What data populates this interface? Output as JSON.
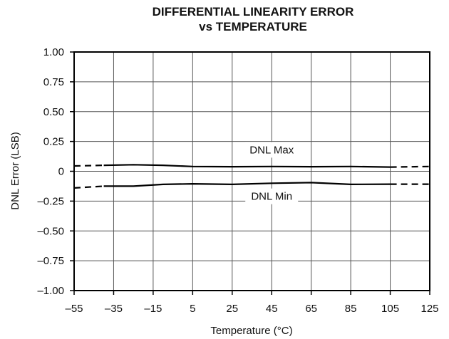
{
  "chart_data": {
    "type": "line",
    "title": "DIFFERENTIAL LINEARITY ERROR",
    "subtitle": "vs TEMPERATURE",
    "xlabel": "Temperature (°C)",
    "ylabel": "DNL Error (LSB)",
    "xlim": [
      -55,
      125
    ],
    "ylim": [
      -1.0,
      1.0
    ],
    "x_ticks": [
      -55,
      -35,
      -15,
      5,
      25,
      45,
      65,
      85,
      105,
      125
    ],
    "x_tick_labels": [
      "–55",
      "–35",
      "–15",
      "5",
      "25",
      "45",
      "65",
      "85",
      "105",
      "125"
    ],
    "y_ticks": [
      1.0,
      0.75,
      0.5,
      0.25,
      0,
      -0.25,
      -0.5,
      -0.75,
      -1.0
    ],
    "y_tick_labels": [
      "1.00",
      "0.75",
      "0.50",
      "0.25",
      "0",
      "–0.25",
      "–0.50",
      "–0.75",
      "–1.00"
    ],
    "grid": true,
    "series": [
      {
        "name": "DNL Max",
        "solid": {
          "x": [
            -40,
            -25,
            -10,
            5,
            25,
            45,
            65,
            85,
            105
          ],
          "y": [
            0.05,
            0.055,
            0.05,
            0.04,
            0.038,
            0.04,
            0.038,
            0.04,
            0.035
          ]
        },
        "dashed_left": {
          "x": [
            -55,
            -40
          ],
          "y": [
            0.045,
            0.05
          ]
        },
        "dashed_right": {
          "x": [
            105,
            125
          ],
          "y": [
            0.035,
            0.04
          ]
        }
      },
      {
        "name": "DNL Min",
        "solid": {
          "x": [
            -40,
            -25,
            -10,
            5,
            25,
            45,
            65,
            85,
            105
          ],
          "y": [
            -0.125,
            -0.125,
            -0.11,
            -0.105,
            -0.11,
            -0.1,
            -0.095,
            -0.11,
            -0.108
          ]
        },
        "dashed_left": {
          "x": [
            -55,
            -40
          ],
          "y": [
            -0.14,
            -0.125
          ]
        },
        "dashed_right": {
          "x": [
            105,
            125
          ],
          "y": [
            -0.108,
            -0.108
          ]
        }
      }
    ],
    "annotations": [
      {
        "text": "DNL Max",
        "x": 45,
        "y": 0.15
      },
      {
        "text": "DNL Min",
        "x": 45,
        "y": -0.24
      }
    ]
  }
}
